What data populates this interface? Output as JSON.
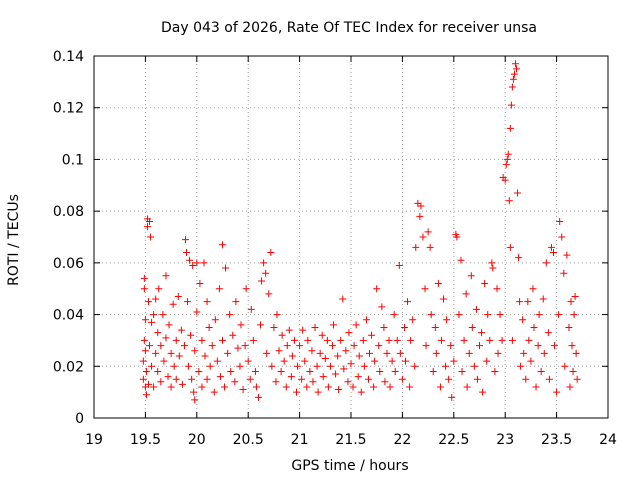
{
  "chart_data": {
    "type": "scatter",
    "title": "Day 043 of 2026, Rate Of TEC Index for receiver unsa",
    "xlabel": "GPS time / hours",
    "ylabel": "ROTI / TECUs",
    "xlim": [
      19,
      24
    ],
    "ylim": [
      0,
      0.14
    ],
    "xticks": [
      19,
      19.5,
      20,
      20.5,
      21,
      21.5,
      22,
      22.5,
      23,
      23.5,
      24
    ],
    "xtick_labels": [
      "19",
      "19.5",
      "20",
      "20.5",
      "21",
      "21.5",
      "22",
      "22.5",
      "23",
      "23.5",
      "24"
    ],
    "yticks": [
      0,
      0.02,
      0.04,
      0.06,
      0.08,
      0.1,
      0.12,
      0.14
    ],
    "ytick_labels": [
      "0",
      "0.02",
      "0.04",
      "0.06",
      "0.08",
      "0.1",
      "0.12",
      "0.14"
    ],
    "grid": true,
    "marker": "+",
    "series": [
      {
        "name": "ROTI",
        "color": "#ff0000",
        "points": [
          [
            19.48,
            0.015
          ],
          [
            19.48,
            0.022
          ],
          [
            19.49,
            0.03
          ],
          [
            19.49,
            0.05
          ],
          [
            19.49,
            0.054
          ],
          [
            19.5,
            0.012
          ],
          [
            19.5,
            0.026
          ],
          [
            19.5,
            0.038
          ],
          [
            19.51,
            0.009
          ],
          [
            19.51,
            0.018
          ],
          [
            19.52,
            0.074
          ],
          [
            19.52,
            0.077
          ],
          [
            19.53,
            0.045
          ],
          [
            19.53,
            0.013
          ],
          [
            19.54,
            0.076
          ],
          [
            19.54,
            0.028
          ],
          [
            19.55,
            0.07
          ],
          [
            19.56,
            0.037
          ],
          [
            19.56,
            0.02
          ],
          [
            19.58,
            0.04
          ],
          [
            19.58,
            0.012
          ],
          [
            19.6,
            0.046
          ],
          [
            19.6,
            0.025
          ],
          [
            19.62,
            0.033
          ],
          [
            19.62,
            0.018
          ],
          [
            19.63,
            0.05
          ],
          [
            19.65,
            0.028
          ],
          [
            19.65,
            0.014
          ],
          [
            19.67,
            0.04
          ],
          [
            19.68,
            0.022
          ],
          [
            19.7,
            0.055
          ],
          [
            19.7,
            0.031
          ],
          [
            19.72,
            0.016
          ],
          [
            19.73,
            0.036
          ],
          [
            19.75,
            0.025
          ],
          [
            19.75,
            0.012
          ],
          [
            19.77,
            0.044
          ],
          [
            19.78,
            0.02
          ],
          [
            19.8,
            0.03
          ],
          [
            19.8,
            0.015
          ],
          [
            19.82,
            0.047
          ],
          [
            19.83,
            0.024
          ],
          [
            19.85,
            0.034
          ],
          [
            19.86,
            0.013
          ],
          [
            19.88,
            0.028
          ],
          [
            19.89,
            0.069
          ],
          [
            19.9,
            0.064
          ],
          [
            19.91,
            0.045
          ],
          [
            19.92,
            0.02
          ],
          [
            19.93,
            0.061
          ],
          [
            19.94,
            0.032
          ],
          [
            19.95,
            0.015
          ],
          [
            19.96,
            0.059
          ],
          [
            19.97,
            0.01
          ],
          [
            19.98,
            0.026
          ],
          [
            19.98,
            0.007
          ],
          [
            20,
            0.06
          ],
          [
            20.0,
            0.041
          ],
          [
            20.02,
            0.018
          ],
          [
            20.03,
            0.052
          ],
          [
            20.05,
            0.03
          ],
          [
            20.05,
            0.012
          ],
          [
            20.07,
            0.06
          ],
          [
            20.08,
            0.024
          ],
          [
            20.1,
            0.045
          ],
          [
            20.1,
            0.015
          ],
          [
            20.12,
            0.035
          ],
          [
            20.13,
            0.02
          ],
          [
            20.15,
            0.028
          ],
          [
            20.17,
            0.01
          ],
          [
            20.18,
            0.038
          ],
          [
            20.2,
            0.022
          ],
          [
            20.22,
            0.05
          ],
          [
            20.23,
            0.016
          ],
          [
            20.25,
            0.067
          ],
          [
            20.25,
            0.03
          ],
          [
            20.27,
            0.012
          ],
          [
            20.28,
            0.058
          ],
          [
            20.3,
            0.025
          ],
          [
            20.32,
            0.04
          ],
          [
            20.33,
            0.018
          ],
          [
            20.35,
            0.032
          ],
          [
            20.37,
            0.014
          ],
          [
            20.38,
            0.045
          ],
          [
            20.4,
            0.027
          ],
          [
            20.42,
            0.02
          ],
          [
            20.43,
            0.036
          ],
          [
            20.45,
            0.011
          ],
          [
            20.47,
            0.028
          ],
          [
            20.48,
            0.05
          ],
          [
            20.5,
            0.022
          ],
          [
            20.52,
            0.015
          ],
          [
            20.53,
            0.042
          ],
          [
            20.55,
            0.03
          ],
          [
            20.57,
            0.018
          ],
          [
            20.58,
            0.012
          ],
          [
            20.6,
            0.008
          ],
          [
            20.62,
            0.036
          ],
          [
            20.63,
            0.053
          ],
          [
            20.65,
            0.06
          ],
          [
            20.67,
            0.056
          ],
          [
            20.68,
            0.025
          ],
          [
            20.7,
            0.048
          ],
          [
            20.72,
            0.064
          ],
          [
            20.73,
            0.02
          ],
          [
            20.75,
            0.035
          ],
          [
            20.77,
            0.014
          ],
          [
            20.78,
            0.04
          ],
          [
            20.8,
            0.026
          ],
          [
            20.82,
            0.018
          ],
          [
            20.83,
            0.032
          ],
          [
            20.85,
            0.022
          ],
          [
            20.87,
            0.012
          ],
          [
            20.88,
            0.028
          ],
          [
            20.9,
            0.034
          ],
          [
            20.92,
            0.016
          ],
          [
            20.93,
            0.024
          ],
          [
            20.95,
            0.03
          ],
          [
            20.97,
            0.01
          ],
          [
            20.98,
            0.02
          ],
          [
            21,
            0.028
          ],
          [
            21.02,
            0.015
          ],
          [
            21.03,
            0.034
          ],
          [
            21.05,
            0.022
          ],
          [
            21.07,
            0.012
          ],
          [
            21.08,
            0.03
          ],
          [
            21.1,
            0.018
          ],
          [
            21.12,
            0.026
          ],
          [
            21.13,
            0.014
          ],
          [
            21.15,
            0.035
          ],
          [
            21.17,
            0.02
          ],
          [
            21.18,
            0.01
          ],
          [
            21.2,
            0.025
          ],
          [
            21.22,
            0.032
          ],
          [
            21.23,
            0.016
          ],
          [
            21.25,
            0.023
          ],
          [
            21.27,
            0.03
          ],
          [
            21.28,
            0.012
          ],
          [
            21.3,
            0.02
          ],
          [
            21.32,
            0.028
          ],
          [
            21.33,
            0.036
          ],
          [
            21.35,
            0.017
          ],
          [
            21.37,
            0.024
          ],
          [
            21.38,
            0.011
          ],
          [
            21.4,
            0.03
          ],
          [
            21.42,
            0.046
          ],
          [
            21.43,
            0.019
          ],
          [
            21.45,
            0.026
          ],
          [
            21.47,
            0.014
          ],
          [
            21.48,
            0.033
          ],
          [
            21.5,
            0.021
          ],
          [
            21.52,
            0.012
          ],
          [
            21.53,
            0.028
          ],
          [
            21.55,
            0.036
          ],
          [
            21.57,
            0.016
          ],
          [
            21.58,
            0.024
          ],
          [
            21.6,
            0.01
          ],
          [
            21.62,
            0.03
          ],
          [
            21.63,
            0.02
          ],
          [
            21.65,
            0.038
          ],
          [
            21.67,
            0.015
          ],
          [
            21.68,
            0.025
          ],
          [
            21.7,
            0.032
          ],
          [
            21.72,
            0.012
          ],
          [
            21.73,
            0.022
          ],
          [
            21.75,
            0.05
          ],
          [
            21.77,
            0.028
          ],
          [
            21.78,
            0.018
          ],
          [
            21.8,
            0.043
          ],
          [
            21.82,
            0.035
          ],
          [
            21.83,
            0.014
          ],
          [
            21.85,
            0.025
          ],
          [
            21.87,
            0.03
          ],
          [
            21.88,
            0.012
          ],
          [
            21.9,
            0.022
          ],
          [
            21.92,
            0.04
          ],
          [
            21.93,
            0.018
          ],
          [
            21.95,
            0.03
          ],
          [
            21.97,
            0.059
          ],
          [
            21.98,
            0.025
          ],
          [
            22,
            0.015
          ],
          [
            22.02,
            0.035
          ],
          [
            22.03,
            0.022
          ],
          [
            22.05,
            0.045
          ],
          [
            22.07,
            0.012
          ],
          [
            22.08,
            0.03
          ],
          [
            22.1,
            0.038
          ],
          [
            22.12,
            0.02
          ],
          [
            22.13,
            0.066
          ],
          [
            22.15,
            0.083
          ],
          [
            22.17,
            0.078
          ],
          [
            22.18,
            0.082
          ],
          [
            22.2,
            0.07
          ],
          [
            22.22,
            0.05
          ],
          [
            22.23,
            0.028
          ],
          [
            22.25,
            0.072
          ],
          [
            22.27,
            0.066
          ],
          [
            22.28,
            0.04
          ],
          [
            22.3,
            0.018
          ],
          [
            22.32,
            0.035
          ],
          [
            22.33,
            0.025
          ],
          [
            22.35,
            0.052
          ],
          [
            22.37,
            0.012
          ],
          [
            22.38,
            0.03
          ],
          [
            22.4,
            0.046
          ],
          [
            22.42,
            0.02
          ],
          [
            22.43,
            0.038
          ],
          [
            22.45,
            0.015
          ],
          [
            22.47,
            0.028
          ],
          [
            22.48,
            0.008
          ],
          [
            22.5,
            0.022
          ],
          [
            22.52,
            0.071
          ],
          [
            22.53,
            0.07
          ],
          [
            22.55,
            0.04
          ],
          [
            22.57,
            0.061
          ],
          [
            22.58,
            0.018
          ],
          [
            22.6,
            0.03
          ],
          [
            22.62,
            0.048
          ],
          [
            22.63,
            0.012
          ],
          [
            22.65,
            0.025
          ],
          [
            22.67,
            0.055
          ],
          [
            22.68,
            0.035
          ],
          [
            22.7,
            0.02
          ],
          [
            22.72,
            0.042
          ],
          [
            22.73,
            0.015
          ],
          [
            22.75,
            0.028
          ],
          [
            22.77,
            0.033
          ],
          [
            22.78,
            0.01
          ],
          [
            22.8,
            0.052
          ],
          [
            22.82,
            0.022
          ],
          [
            22.83,
            0.04
          ],
          [
            22.85,
            0.03
          ],
          [
            22.87,
            0.06
          ],
          [
            22.88,
            0.058
          ],
          [
            22.9,
            0.018
          ],
          [
            22.92,
            0.05
          ],
          [
            22.93,
            0.025
          ],
          [
            22.95,
            0.04
          ],
          [
            22.97,
            0.03
          ],
          [
            22.98,
            0.093
          ],
          [
            23,
            0.092
          ],
          [
            23.01,
            0.098
          ],
          [
            23.02,
            0.1
          ],
          [
            23.03,
            0.102
          ],
          [
            23.04,
            0.084
          ],
          [
            23.05,
            0.112
          ],
          [
            23.06,
            0.121
          ],
          [
            23.07,
            0.128
          ],
          [
            23.08,
            0.131
          ],
          [
            23.09,
            0.133
          ],
          [
            23.1,
            0.137
          ],
          [
            23.11,
            0.135
          ],
          [
            23.12,
            0.087
          ],
          [
            23.13,
            0.062
          ],
          [
            23.14,
            0.045
          ],
          [
            23.05,
            0.066
          ],
          [
            23.07,
            0.03
          ],
          [
            23.15,
            0.02
          ],
          [
            23.17,
            0.038
          ],
          [
            23.18,
            0.025
          ],
          [
            23.2,
            0.015
          ],
          [
            23.22,
            0.045
          ],
          [
            23.23,
            0.03
          ],
          [
            23.25,
            0.022
          ],
          [
            23.27,
            0.05
          ],
          [
            23.28,
            0.035
          ],
          [
            23.3,
            0.012
          ],
          [
            23.32,
            0.028
          ],
          [
            23.33,
            0.04
          ],
          [
            23.35,
            0.018
          ],
          [
            23.37,
            0.046
          ],
          [
            23.38,
            0.025
          ],
          [
            23.4,
            0.06
          ],
          [
            23.42,
            0.033
          ],
          [
            23.43,
            0.015
          ],
          [
            23.45,
            0.066
          ],
          [
            23.47,
            0.064
          ],
          [
            23.48,
            0.028
          ],
          [
            23.5,
            0.01
          ],
          [
            23.52,
            0.04
          ],
          [
            23.53,
            0.076
          ],
          [
            23.55,
            0.07
          ],
          [
            23.57,
            0.056
          ],
          [
            23.58,
            0.02
          ],
          [
            23.6,
            0.063
          ],
          [
            23.62,
            0.035
          ],
          [
            23.63,
            0.012
          ],
          [
            23.64,
            0.045
          ],
          [
            23.65,
            0.028
          ],
          [
            23.66,
            0.018
          ],
          [
            23.67,
            0.04
          ],
          [
            23.68,
            0.047
          ],
          [
            23.69,
            0.025
          ],
          [
            23.7,
            0.015
          ]
        ]
      }
    ]
  }
}
